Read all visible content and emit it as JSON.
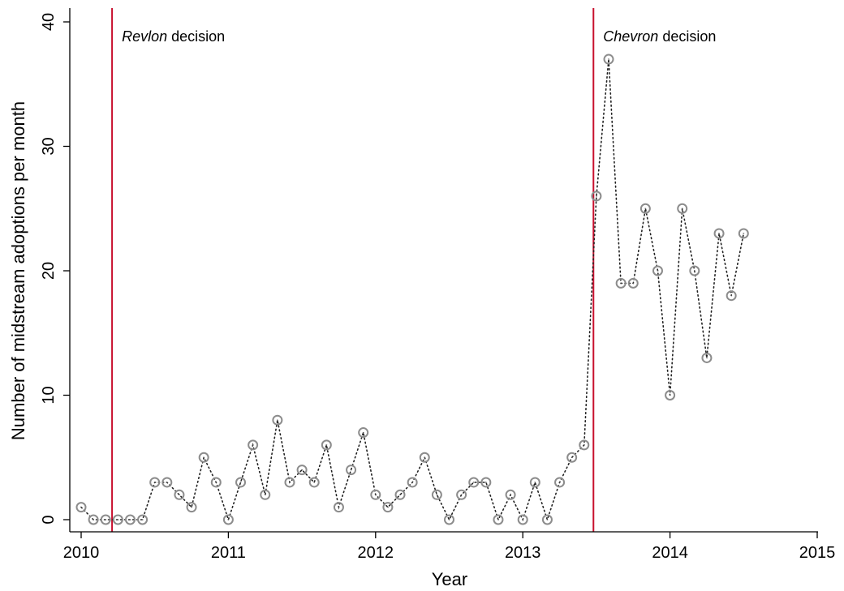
{
  "chart_data": {
    "type": "line",
    "xlabel": "Year",
    "ylabel": "Number of midstream adoptions per month",
    "xlim": [
      2010,
      2015
    ],
    "ylim": [
      0,
      40
    ],
    "xticks": [
      "2010",
      "2011",
      "2012",
      "2013",
      "2014",
      "2015"
    ],
    "yticks": [
      "0",
      "10",
      "20",
      "30",
      "40"
    ],
    "grid": false,
    "events": [
      {
        "x": 2010.21,
        "italic": "Revlon",
        "rest": " decision",
        "color": "#c8102e"
      },
      {
        "x": 2013.48,
        "italic": "Chevron",
        "rest": " decision",
        "color": "#c8102e"
      }
    ],
    "series": [
      {
        "start_year": 2010,
        "start_month": 1,
        "values": [
          1,
          0,
          0,
          0,
          0,
          0,
          3,
          3,
          2,
          1,
          5,
          3,
          0,
          3,
          6,
          2,
          8,
          3,
          4,
          3,
          6,
          1,
          4,
          7,
          2,
          1,
          2,
          3,
          5,
          2,
          0,
          2,
          3,
          3,
          0,
          2,
          0,
          3,
          0,
          3,
          5,
          6,
          26,
          37,
          19,
          19,
          25,
          20,
          10,
          25,
          20,
          13,
          23,
          18,
          23
        ]
      }
    ]
  }
}
